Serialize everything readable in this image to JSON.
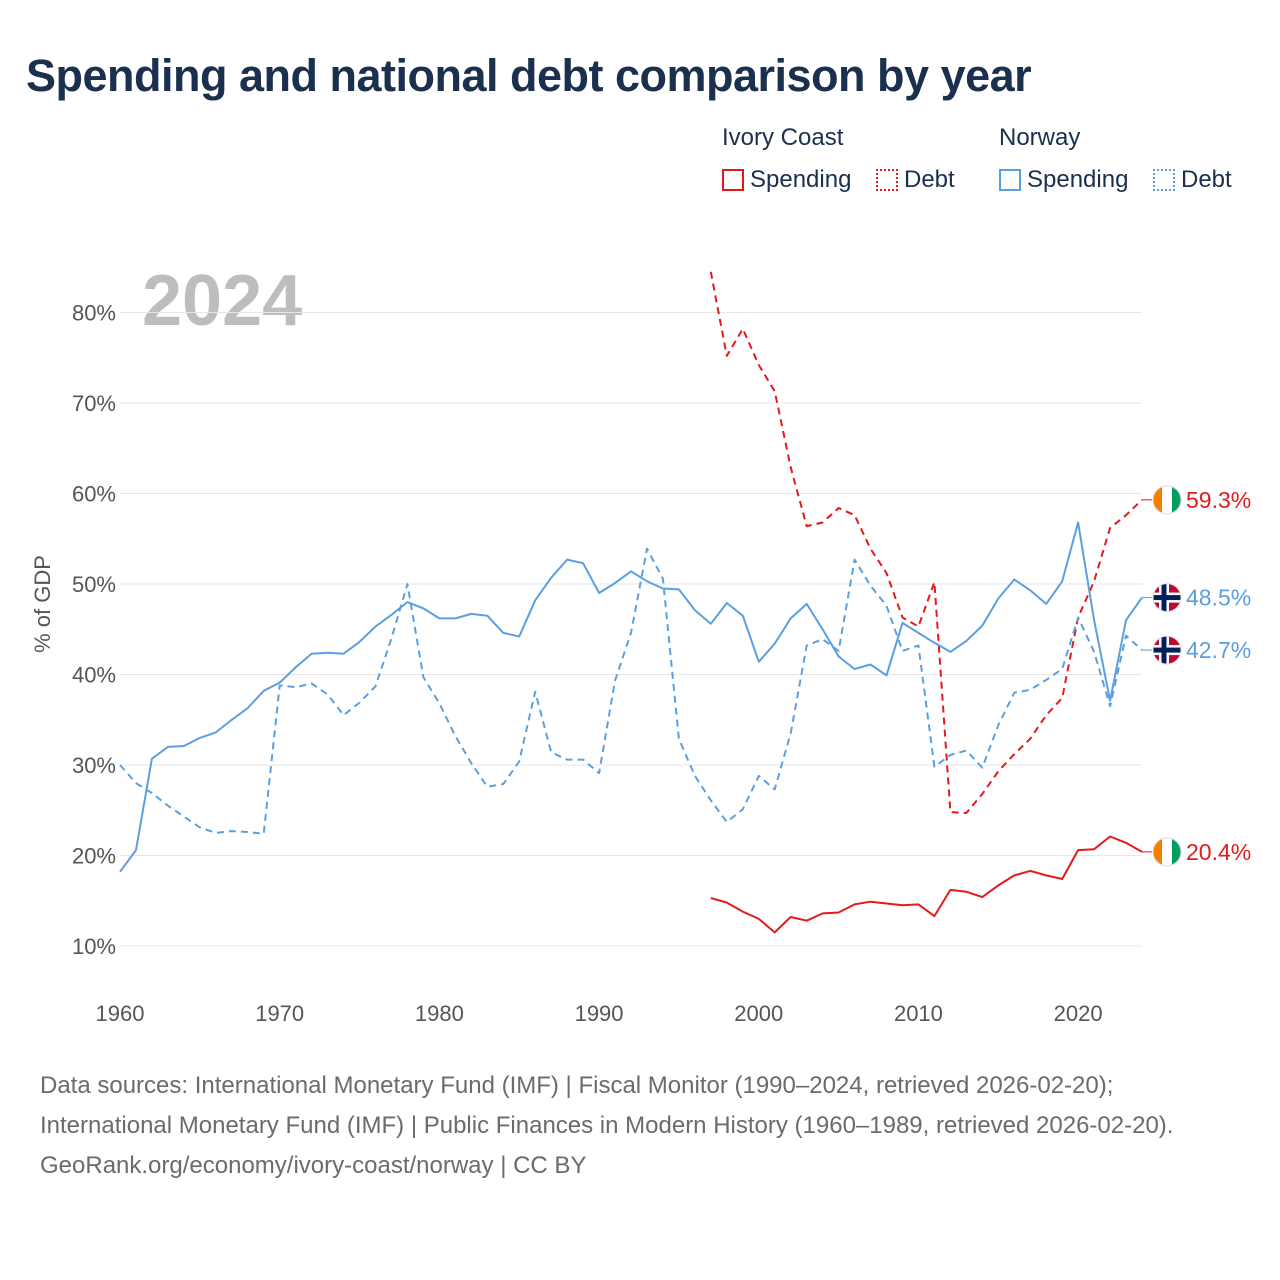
{
  "title": "Spending and national debt comparison by year",
  "legend": {
    "groups": [
      {
        "name": "Ivory Coast",
        "color": "#e31a1c",
        "items": [
          "Spending",
          "Debt"
        ]
      },
      {
        "name": "Norway",
        "color": "#5aa0e0",
        "items": [
          "Spending",
          "Debt"
        ]
      }
    ]
  },
  "footer": {
    "sources": "Data sources: International Monetary Fund (IMF) | Fiscal Monitor (1990–2024, retrieved 2026-02-20); International Monetary Fund (IMF) | Public Finances in Modern History (1960–1989, retrieved 2026-02-20).",
    "credit": "GeoRank.org/economy/ivory-coast/norway | CC BY"
  },
  "chart_data": {
    "type": "line",
    "year_label": "2024",
    "ylabel": "% of GDP",
    "xlabel": "",
    "xlim": [
      1960,
      2024
    ],
    "ylim": [
      7,
      82
    ],
    "x_ticks": [
      1960,
      1970,
      1980,
      1990,
      2000,
      2010,
      2020
    ],
    "y_ticks": [
      10,
      20,
      30,
      40,
      50,
      60,
      70,
      80
    ],
    "y_tick_labels": [
      "10%",
      "20%",
      "30%",
      "40%",
      "50%",
      "60%",
      "70%",
      "80%"
    ],
    "series": [
      {
        "name": "Ivory Coast Spending",
        "country": "Ivory Coast",
        "style": "solid",
        "color": "#e31a1c",
        "end_label": "20.4%",
        "flag": "ivory-coast",
        "x": [
          1997,
          1998,
          1999,
          2000,
          2001,
          2002,
          2003,
          2004,
          2005,
          2006,
          2007,
          2008,
          2009,
          2010,
          2011,
          2012,
          2013,
          2014,
          2015,
          2016,
          2017,
          2018,
          2019,
          2020,
          2021,
          2022,
          2023,
          2024
        ],
        "values": [
          15.3,
          14.8,
          13.8,
          13.0,
          11.5,
          13.2,
          12.8,
          13.6,
          13.7,
          14.6,
          14.9,
          14.7,
          14.5,
          14.6,
          13.3,
          16.2,
          16.0,
          15.4,
          16.7,
          17.8,
          18.3,
          17.8,
          17.4,
          20.6,
          20.7,
          22.1,
          21.4,
          20.4
        ]
      },
      {
        "name": "Ivory Coast Debt",
        "country": "Ivory Coast",
        "style": "dashed",
        "color": "#e31a1c",
        "end_label": "59.3%",
        "flag": "ivory-coast",
        "x": [
          1997,
          1998,
          1999,
          2000,
          2001,
          2002,
          2003,
          2004,
          2005,
          2006,
          2007,
          2008,
          2009,
          2010,
          2011,
          2012,
          2013,
          2014,
          2015,
          2016,
          2017,
          2018,
          2019,
          2020,
          2021,
          2022,
          2023,
          2024
        ],
        "values": [
          84.5,
          75.2,
          78.2,
          74.2,
          71.3,
          62.9,
          56.4,
          56.8,
          58.4,
          57.6,
          53.9,
          51.2,
          46.3,
          45.3,
          50.2,
          24.8,
          24.7,
          26.8,
          29.3,
          31.2,
          32.9,
          35.5,
          37.4,
          46.3,
          50.3,
          56.2,
          57.6,
          59.3
        ]
      },
      {
        "name": "Norway Spending",
        "country": "Norway",
        "style": "solid",
        "color": "#5aa0e0",
        "end_label": "48.5%",
        "flag": "norway",
        "x": [
          1960,
          1961,
          1962,
          1963,
          1964,
          1965,
          1966,
          1967,
          1968,
          1969,
          1970,
          1971,
          1972,
          1973,
          1974,
          1975,
          1976,
          1977,
          1978,
          1979,
          1980,
          1981,
          1982,
          1983,
          1984,
          1985,
          1986,
          1987,
          1988,
          1989,
          1990,
          1991,
          1992,
          1993,
          1994,
          1995,
          1996,
          1997,
          1998,
          1999,
          2000,
          2001,
          2002,
          2003,
          2004,
          2005,
          2006,
          2007,
          2008,
          2009,
          2010,
          2011,
          2012,
          2013,
          2014,
          2015,
          2016,
          2017,
          2018,
          2019,
          2020,
          2021,
          2022,
          2023,
          2024
        ],
        "values": [
          18.2,
          20.6,
          30.7,
          32.0,
          32.1,
          33.0,
          33.6,
          35.0,
          36.3,
          38.2,
          39.1,
          40.8,
          42.3,
          42.4,
          42.3,
          43.6,
          45.3,
          46.6,
          48.0,
          47.3,
          46.2,
          46.2,
          46.7,
          46.5,
          44.6,
          44.2,
          48.2,
          50.7,
          52.7,
          52.3,
          49.0,
          50.1,
          51.4,
          50.3,
          49.5,
          49.4,
          47.1,
          45.6,
          47.9,
          46.5,
          41.4,
          43.4,
          46.2,
          47.8,
          45.0,
          42.0,
          40.6,
          41.1,
          39.9,
          45.7,
          44.6,
          43.5,
          42.5,
          43.7,
          45.4,
          48.4,
          50.5,
          49.3,
          47.8,
          50.3,
          56.8,
          46.0,
          37.1,
          46.0,
          48.5
        ]
      },
      {
        "name": "Norway Debt",
        "country": "Norway",
        "style": "dashed",
        "color": "#5aa0e0",
        "end_label": "42.7%",
        "flag": "norway",
        "x": [
          1960,
          1961,
          1962,
          1963,
          1964,
          1965,
          1966,
          1967,
          1968,
          1969,
          1970,
          1971,
          1972,
          1973,
          1974,
          1975,
          1976,
          1977,
          1978,
          1979,
          1980,
          1981,
          1982,
          1983,
          1984,
          1985,
          1986,
          1987,
          1988,
          1989,
          1990,
          1991,
          1992,
          1993,
          1994,
          1995,
          1996,
          1997,
          1998,
          1999,
          2000,
          2001,
          2002,
          2003,
          2004,
          2005,
          2006,
          2007,
          2008,
          2009,
          2010,
          2011,
          2012,
          2013,
          2014,
          2015,
          2016,
          2017,
          2018,
          2019,
          2020,
          2021,
          2022,
          2023,
          2024
        ],
        "values": [
          30.0,
          28.0,
          26.9,
          25.5,
          24.3,
          23.1,
          22.5,
          22.7,
          22.6,
          22.4,
          38.8,
          38.6,
          39.0,
          37.8,
          35.5,
          36.9,
          38.7,
          44.0,
          50.0,
          39.7,
          36.8,
          33.2,
          30.2,
          27.6,
          27.9,
          30.4,
          38.1,
          31.4,
          30.6,
          30.6,
          29.1,
          39.3,
          44.6,
          53.9,
          50.6,
          32.9,
          28.8,
          26.1,
          23.7,
          25.1,
          28.8,
          27.3,
          33.5,
          43.2,
          43.9,
          42.6,
          52.7,
          49.8,
          47.6,
          42.6,
          43.2,
          29.8,
          31.1,
          31.6,
          29.7,
          34.4,
          38.0,
          38.3,
          39.4,
          40.6,
          46.3,
          42.5,
          36.5,
          44.3,
          42.7
        ]
      }
    ]
  }
}
